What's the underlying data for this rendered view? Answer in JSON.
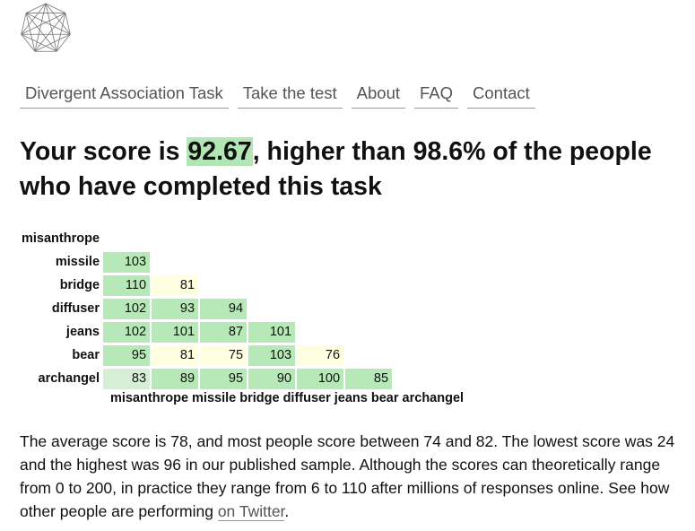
{
  "nav": {
    "items": [
      "Divergent Association Task",
      "Take the test",
      "About",
      "FAQ",
      "Contact"
    ]
  },
  "headline": {
    "prefix": "Your score is ",
    "score": "92.67",
    "suffix": ", higher than 98.6% of the people who have completed this task"
  },
  "matrix": {
    "rows": [
      {
        "label": "misanthrope",
        "values": []
      },
      {
        "label": "missile",
        "values": [
          {
            "v": "103",
            "t": "hi"
          }
        ]
      },
      {
        "label": "bridge",
        "values": [
          {
            "v": "110",
            "t": "hi"
          },
          {
            "v": "81",
            "t": "lo"
          }
        ]
      },
      {
        "label": "diffuser",
        "values": [
          {
            "v": "102",
            "t": "hi"
          },
          {
            "v": "93",
            "t": "hi"
          },
          {
            "v": "94",
            "t": "hi"
          }
        ]
      },
      {
        "label": "jeans",
        "values": [
          {
            "v": "102",
            "t": "hi"
          },
          {
            "v": "101",
            "t": "hi"
          },
          {
            "v": "87",
            "t": "hi"
          },
          {
            "v": "101",
            "t": "hi"
          }
        ]
      },
      {
        "label": "bear",
        "values": [
          {
            "v": "95",
            "t": "hi"
          },
          {
            "v": "81",
            "t": "lo"
          },
          {
            "v": "75",
            "t": "lo"
          },
          {
            "v": "103",
            "t": "hi"
          },
          {
            "v": "76",
            "t": "lo"
          }
        ]
      },
      {
        "label": "archangel",
        "values": [
          {
            "v": "83",
            "t": "pale"
          },
          {
            "v": "89",
            "t": "hi"
          },
          {
            "v": "95",
            "t": "hi"
          },
          {
            "v": "90",
            "t": "hi"
          },
          {
            "v": "100",
            "t": "hi"
          },
          {
            "v": "85",
            "t": "hi"
          }
        ]
      }
    ],
    "column_labels": "misanthrope missile bridge diffuser jeans bear archangel"
  },
  "description": {
    "text": "The average score is 78, and most people score between 74 and 82. The lowest score was 24 and the highest was 96 in our published sample. Although the scores can theoretically range from 0 to 200, in practice they range from 6 to 110 after millions of responses online. See how other people are performing ",
    "link": "on Twitter",
    "end": "."
  },
  "colors": {
    "high": "#b7e8b7",
    "low": "#fefee0",
    "pale": "#d6eed6",
    "score_highlight": "#b3e6b5"
  }
}
